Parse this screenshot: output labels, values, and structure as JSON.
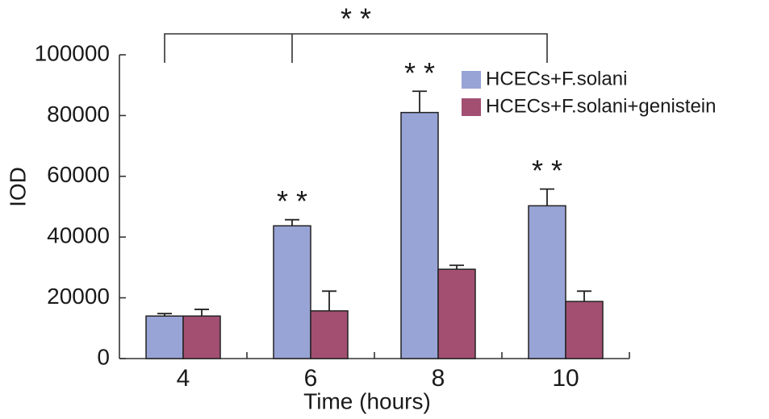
{
  "chart_data": {
    "type": "bar",
    "x_label": "Time (hours)",
    "y_label": "IOD",
    "categories": [
      "4",
      "6",
      "8",
      "10"
    ],
    "series": [
      {
        "name": "HCECs+F.solani",
        "color": "#98a3d6",
        "values": [
          14000,
          43700,
          81000,
          50300
        ],
        "errors": [
          800,
          2000,
          7000,
          5500
        ]
      },
      {
        "name": "HCECs+F.solani+genistein",
        "color": "#a24f72",
        "values": [
          14000,
          15700,
          29400,
          18800
        ],
        "errors": [
          2200,
          6500,
          1300,
          3400
        ]
      }
    ],
    "significance": [
      null,
      "* *",
      "* *",
      "* *"
    ],
    "bracket_label": "* *",
    "ylim": [
      0,
      100000
    ],
    "yticks": [
      0,
      20000,
      40000,
      60000,
      80000,
      100000
    ],
    "grid": false,
    "legend": "upper right"
  }
}
